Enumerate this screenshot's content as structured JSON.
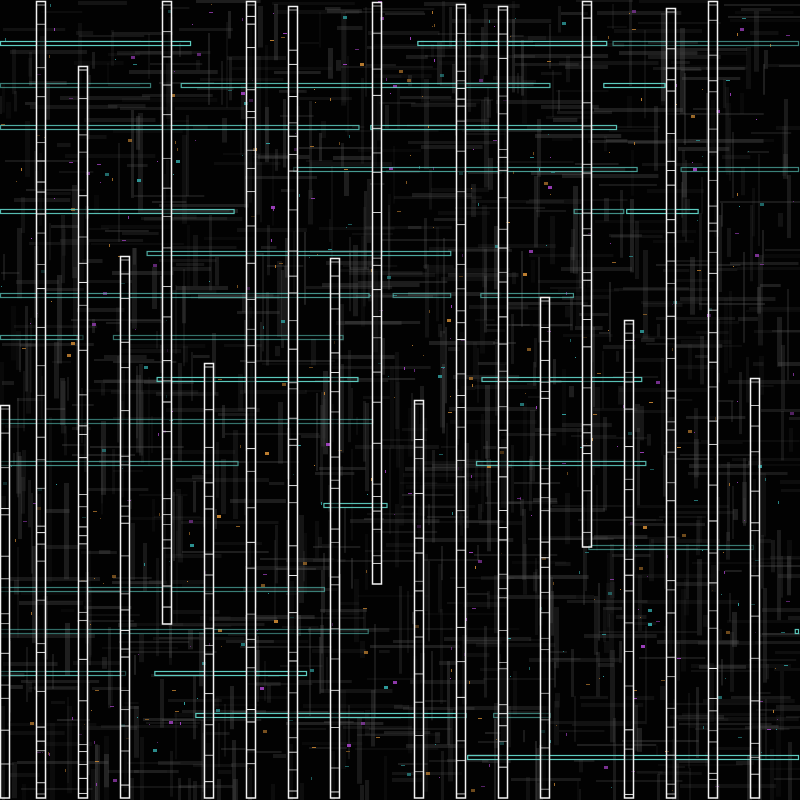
{
  "palette": {
    "background": "#020202",
    "column_stroke": "#f2f2f2",
    "bar_stroke": "#5fd0c4",
    "texture_gray": "#5a5a5a",
    "accent_magenta": "#a040c0",
    "accent_orange": "#c08030",
    "accent_cyan": "#30a0a0"
  }
}
